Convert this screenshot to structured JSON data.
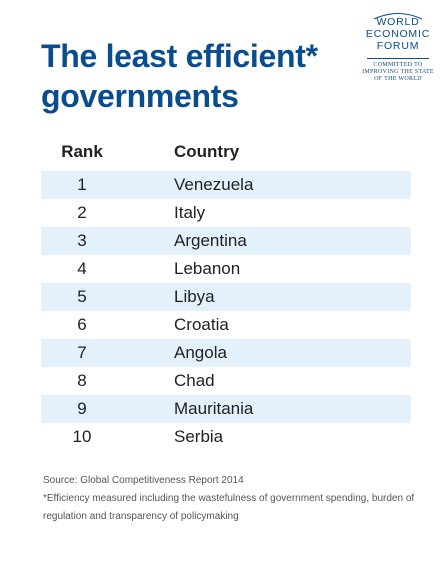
{
  "title": "The least efficient* governments",
  "logo": {
    "lines": [
      "WORLD",
      "ECONOMIC",
      "FORUM"
    ],
    "tagline": [
      "COMMITTED TO",
      "IMPROVING THE STATE",
      "OF THE WORLD"
    ]
  },
  "colors": {
    "title": "#0a4d8c",
    "row_shade": "#e4f1fb",
    "text": "#222222"
  },
  "chart_data": {
    "type": "table",
    "columns": [
      "Rank",
      "Country"
    ],
    "rows": [
      {
        "rank": "1",
        "country": "Venezuela"
      },
      {
        "rank": "2",
        "country": "Italy"
      },
      {
        "rank": "3",
        "country": "Argentina"
      },
      {
        "rank": "4",
        "country": "Lebanon"
      },
      {
        "rank": "5",
        "country": "Libya"
      },
      {
        "rank": "6",
        "country": "Croatia"
      },
      {
        "rank": "7",
        "country": "Angola"
      },
      {
        "rank": "8",
        "country": "Chad"
      },
      {
        "rank": "9",
        "country": "Mauritania"
      },
      {
        "rank": "10",
        "country": "Serbia"
      }
    ]
  },
  "footnotes": {
    "source": "Source: Global Competitiveness Report 2014",
    "note": "*Efficiency measured including the wastefulness of government spending, burden of regulation and transparency of policymaking"
  }
}
